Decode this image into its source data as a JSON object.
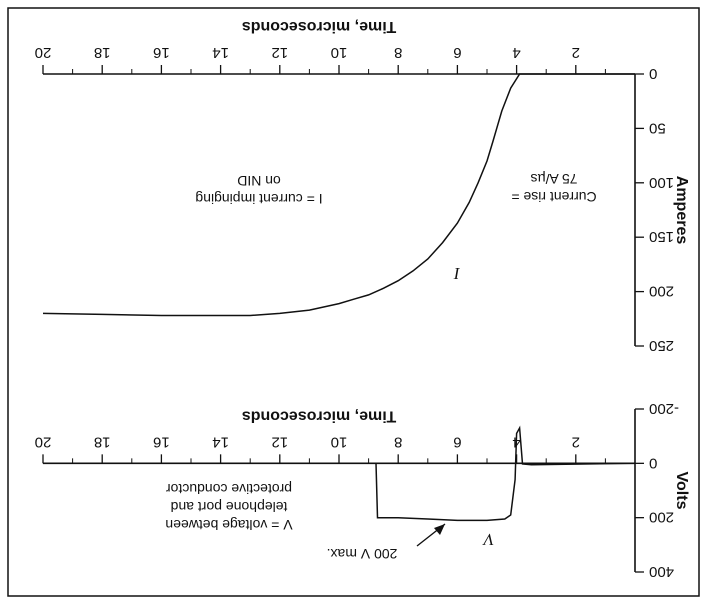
{
  "chart_data": [
    {
      "type": "line",
      "xlabel": "Time, microseconds",
      "ylabel": "Amperes",
      "xlim": [
        0,
        20
      ],
      "ylim": [
        0,
        250
      ],
      "x_ticks": [
        "2",
        "4",
        "6",
        "8",
        "10",
        "12",
        "14",
        "16",
        "18",
        "20"
      ],
      "y_ticks": [
        "0",
        "50",
        "100",
        "150",
        "200",
        "250"
      ],
      "series": [
        {
          "name": "I",
          "x": [
            0,
            3.9,
            4.2,
            4.5,
            4.8,
            5.0,
            5.3,
            5.6,
            6.0,
            6.5,
            7.0,
            7.5,
            8.0,
            8.5,
            9.0,
            9.5,
            10.0,
            11.0,
            12.0,
            13.0,
            14.0,
            15.0,
            16.0,
            18.0,
            20.0
          ],
          "y": [
            0,
            0,
            13,
            34,
            62,
            80,
            100,
            118,
            137,
            155,
            170,
            181,
            190,
            197,
            203,
            207,
            211,
            217,
            220,
            222,
            222,
            222,
            222,
            221,
            220
          ]
        }
      ],
      "annotations": [
        "I = current impinging on NID",
        "Current rise = 75 A/µs",
        "I"
      ]
    },
    {
      "type": "line",
      "xlabel": "Time, microseconds",
      "ylabel": "Volts",
      "xlim": [
        0,
        20
      ],
      "ylim": [
        -200,
        400
      ],
      "x_ticks": [
        "2",
        "4",
        "6",
        "8",
        "10",
        "12",
        "14",
        "16",
        "18",
        "20"
      ],
      "y_ticks": [
        "-200",
        "0",
        "200",
        "400"
      ],
      "series": [
        {
          "name": "V",
          "x": [
            0,
            3.5,
            3.8,
            3.9,
            4.0,
            4.05,
            4.2,
            4.4,
            5.0,
            6.0,
            7.0,
            8.0,
            8.7,
            8.75,
            9.0,
            10.0,
            12.0,
            14.0,
            16.0,
            18.0,
            20.0
          ],
          "y": [
            0,
            5,
            2,
            -130,
            -110,
            60,
            190,
            205,
            210,
            210,
            205,
            200,
            200,
            0,
            0,
            0,
            0,
            0,
            0,
            0,
            0
          ]
        }
      ],
      "annotations": [
        "V = voltage between telephone port and protective conductor",
        "200 V max.",
        "V"
      ]
    }
  ]
}
